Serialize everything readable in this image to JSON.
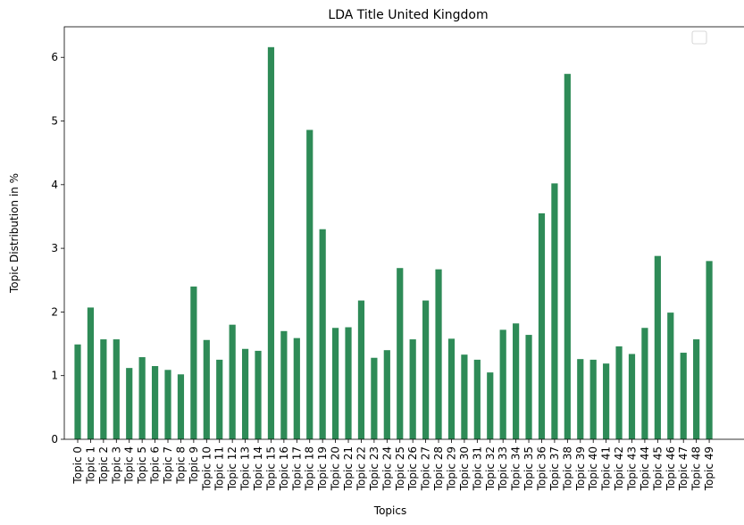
{
  "chart_data": {
    "type": "bar",
    "title": "LDA Title United Kingdom",
    "xlabel": "Topics",
    "ylabel": "Topic Distribution in %",
    "ylim": [
      0,
      6.48
    ],
    "yticks": [
      0,
      1,
      2,
      3,
      4,
      5,
      6
    ],
    "grid": false,
    "legend": "top-right",
    "bar_color": "#2e8b57",
    "categories": [
      "Topic 0",
      "Topic 1",
      "Topic 2",
      "Topic 3",
      "Topic 4",
      "Topic 5",
      "Topic 6",
      "Topic 7",
      "Topic 8",
      "Topic 9",
      "Topic 10",
      "Topic 11",
      "Topic 12",
      "Topic 13",
      "Topic 14",
      "Topic 15",
      "Topic 16",
      "Topic 17",
      "Topic 18",
      "Topic 19",
      "Topic 20",
      "Topic 21",
      "Topic 22",
      "Topic 23",
      "Topic 24",
      "Topic 25",
      "Topic 26",
      "Topic 27",
      "Topic 28",
      "Topic 29",
      "Topic 30",
      "Topic 31",
      "Topic 32",
      "Topic 33",
      "Topic 34",
      "Topic 35",
      "Topic 36",
      "Topic 37",
      "Topic 38",
      "Topic 39",
      "Topic 40",
      "Topic 41",
      "Topic 42",
      "Topic 43",
      "Topic 44",
      "Topic 45",
      "Topic 46",
      "Topic 47",
      "Topic 48",
      "Topic 49"
    ],
    "values": [
      1.49,
      2.07,
      1.57,
      1.57,
      1.12,
      1.29,
      1.15,
      1.09,
      1.02,
      2.4,
      1.56,
      1.25,
      1.8,
      1.42,
      1.39,
      6.16,
      1.7,
      1.59,
      4.86,
      3.3,
      1.75,
      1.76,
      2.18,
      1.28,
      1.4,
      2.69,
      1.57,
      2.18,
      2.67,
      1.58,
      1.33,
      1.25,
      1.05,
      1.72,
      1.82,
      1.64,
      3.55,
      4.02,
      5.74,
      1.26,
      1.25,
      1.19,
      1.46,
      1.34,
      1.75,
      2.88,
      1.99,
      1.36,
      1.57,
      2.8
    ]
  }
}
